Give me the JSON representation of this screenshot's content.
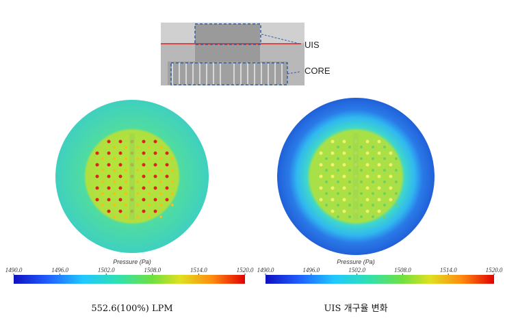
{
  "top_image": {
    "labels": [
      "UIS",
      "CORE"
    ]
  },
  "panels": [
    {
      "colorbar": {
        "title": "Pressure (Pa)",
        "lim": [
          1490,
          1520
        ],
        "ticks": [
          {
            "value": 1490,
            "label": "1490.0"
          },
          {
            "value": 1496,
            "label": "1496.0"
          },
          {
            "value": 1502,
            "label": "1502.0"
          },
          {
            "value": 1508,
            "label": "1508.0"
          },
          {
            "value": 1514,
            "label": "1514.0"
          },
          {
            "value": 1520,
            "label": "1520.0"
          }
        ]
      },
      "caption": "552.6(100%) LPM"
    },
    {
      "colorbar": {
        "title": "Pressure (Pa)",
        "lim": [
          1490,
          1520
        ],
        "ticks": [
          {
            "value": 1490,
            "label": "1490.0"
          },
          {
            "value": 1496,
            "label": "1496.0"
          },
          {
            "value": 1502,
            "label": "1502.0"
          },
          {
            "value": 1508,
            "label": "1508.0"
          },
          {
            "value": 1514,
            "label": "1514.0"
          },
          {
            "value": 1520,
            "label": "1520.0"
          }
        ]
      },
      "caption": "UIS 개구율 변화"
    }
  ]
}
